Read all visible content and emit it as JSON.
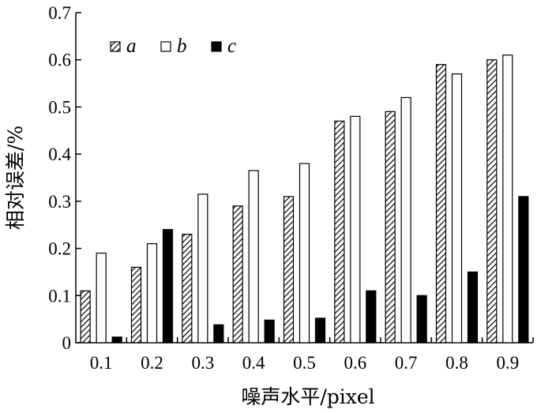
{
  "chart_data": {
    "type": "bar",
    "xlabel": "噪声水平/pixel",
    "ylabel": "相对误差/%",
    "categories": [
      "0.1",
      "0.2",
      "0.3",
      "0.4",
      "0.5",
      "0.6",
      "0.7",
      "0.8",
      "0.9"
    ],
    "ylim": [
      0,
      0.7
    ],
    "yticks": [
      "0",
      "0.1",
      "0.2",
      "0.3",
      "0.4",
      "0.5",
      "0.6",
      "0.7"
    ],
    "grid": false,
    "legend_position": "top-left",
    "series": [
      {
        "name": "a",
        "pattern": "hatched",
        "color": "#000000",
        "values": [
          0.11,
          0.16,
          0.23,
          0.29,
          0.31,
          0.47,
          0.49,
          0.59,
          0.6
        ]
      },
      {
        "name": "b",
        "pattern": "hollow",
        "color": "#ffffff",
        "values": [
          0.19,
          0.21,
          0.315,
          0.365,
          0.38,
          0.48,
          0.52,
          0.57,
          0.61
        ]
      },
      {
        "name": "c",
        "pattern": "solid",
        "color": "#000000",
        "values": [
          0.012,
          0.24,
          0.038,
          0.048,
          0.052,
          0.11,
          0.1,
          0.15,
          0.31
        ]
      }
    ]
  }
}
